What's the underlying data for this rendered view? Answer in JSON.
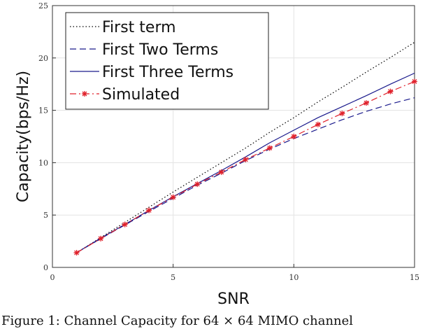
{
  "chart_data": {
    "type": "line",
    "title": "",
    "xlabel": "SNR",
    "ylabel": "Capacity(bps/Hz)",
    "xlim": [
      0,
      15
    ],
    "ylim": [
      0,
      25
    ],
    "xticks": [
      0,
      5,
      10,
      15
    ],
    "yticks": [
      0,
      5,
      10,
      15,
      20,
      25
    ],
    "grid": true,
    "legend_position": "top-left",
    "series": [
      {
        "name": "First term",
        "style": "dotted",
        "color": "#000000",
        "x": [
          1,
          2,
          3,
          4,
          5,
          6,
          7,
          8,
          9,
          10,
          11,
          12,
          13,
          14,
          15
        ],
        "values": [
          1.4,
          2.85,
          4.3,
          5.75,
          7.2,
          8.6,
          10.0,
          11.4,
          12.9,
          14.3,
          15.8,
          17.2,
          18.65,
          20.05,
          21.5
        ]
      },
      {
        "name": "First Two Terms",
        "style": "dashed",
        "color": "#1a1a8c",
        "x": [
          1,
          2,
          3,
          4,
          5,
          6,
          7,
          8,
          9,
          10,
          11,
          12,
          13,
          14,
          15
        ],
        "values": [
          1.4,
          2.75,
          4.05,
          5.35,
          6.6,
          7.85,
          9.0,
          10.2,
          11.3,
          12.3,
          13.2,
          14.1,
          14.9,
          15.6,
          16.2
        ]
      },
      {
        "name": "First Three Terms",
        "style": "solid",
        "color": "#1a1a8c",
        "x": [
          1,
          2,
          3,
          4,
          5,
          6,
          7,
          8,
          9,
          10,
          11,
          12,
          13,
          14,
          15
        ],
        "values": [
          1.4,
          2.8,
          4.1,
          5.45,
          6.75,
          8.0,
          9.25,
          10.55,
          11.9,
          13.1,
          14.3,
          15.35,
          16.4,
          17.5,
          18.55
        ]
      },
      {
        "name": "Simulated",
        "style": "dashdot",
        "marker": "asterisk",
        "color": "#e0202a",
        "x": [
          1,
          2,
          3,
          4,
          5,
          6,
          7,
          8,
          9,
          10,
          11,
          12,
          13,
          14,
          15
        ],
        "values": [
          1.4,
          2.75,
          4.1,
          5.45,
          6.7,
          7.95,
          9.1,
          10.3,
          11.4,
          12.5,
          13.65,
          14.7,
          15.7,
          16.8,
          17.75
        ]
      }
    ]
  },
  "caption": "Figure 1: Channel Capacity for 64 × 64 MIMO channel"
}
